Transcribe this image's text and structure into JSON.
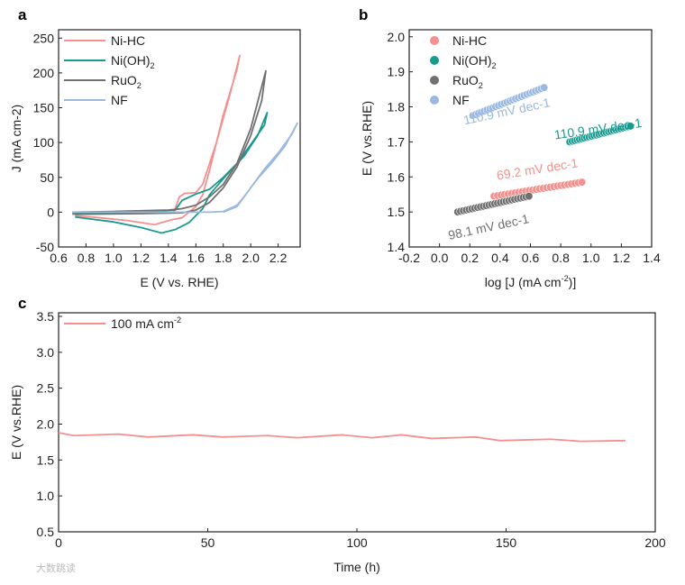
{
  "watermark": "大数跳读",
  "chart_data": [
    {
      "panel": "a",
      "type": "line",
      "xlabel": "E (V vs. RHE)",
      "ylabel": "J (mA cm-2)",
      "xlim": [
        0.6,
        2.36
      ],
      "ylim": [
        -50,
        262
      ],
      "xticks": [
        "0.6",
        "0.8",
        "1.0",
        "1.2",
        "1.4",
        "1.6",
        "1.8",
        "2.0",
        "2.2"
      ],
      "yticks": [
        "-50",
        "0",
        "50",
        "100",
        "150",
        "200",
        "250"
      ],
      "legend_placement": "top-left",
      "series": [
        {
          "name": "Ni-HC",
          "color": "#f4908e",
          "points": [
            [
              0.7,
              -3
            ],
            [
              1.0,
              -1
            ],
            [
              1.44,
              0
            ],
            [
              1.48,
              22
            ],
            [
              1.52,
              27
            ],
            [
              1.6,
              28
            ],
            [
              1.65,
              40
            ],
            [
              1.75,
              100
            ],
            [
              1.85,
              170
            ],
            [
              1.92,
              225
            ],
            [
              1.9,
              205
            ],
            [
              1.8,
              140
            ],
            [
              1.7,
              60
            ],
            [
              1.65,
              25
            ],
            [
              1.6,
              8
            ],
            [
              1.5,
              -8
            ],
            [
              1.42,
              -11
            ],
            [
              1.3,
              -18
            ],
            [
              1.1,
              -12
            ],
            [
              0.9,
              -8
            ],
            [
              0.72,
              -5
            ]
          ]
        },
        {
          "name": "Ni(OH)2",
          "color": "#1a9a8e",
          "points": [
            [
              0.7,
              -2
            ],
            [
              1.0,
              -1
            ],
            [
              1.45,
              3
            ],
            [
              1.5,
              17
            ],
            [
              1.6,
              26
            ],
            [
              1.7,
              33
            ],
            [
              1.8,
              50
            ],
            [
              1.95,
              80
            ],
            [
              2.05,
              110
            ],
            [
              2.12,
              143
            ],
            [
              2.1,
              125
            ],
            [
              2.0,
              97
            ],
            [
              1.9,
              70
            ],
            [
              1.8,
              48
            ],
            [
              1.7,
              25
            ],
            [
              1.65,
              5
            ],
            [
              1.55,
              -15
            ],
            [
              1.45,
              -25
            ],
            [
              1.35,
              -30
            ],
            [
              1.2,
              -22
            ],
            [
              1.0,
              -14
            ],
            [
              0.72,
              -7
            ]
          ]
        },
        {
          "name": "RuO2",
          "color": "#707070",
          "points": [
            [
              0.7,
              0
            ],
            [
              1.0,
              1
            ],
            [
              1.4,
              3
            ],
            [
              1.5,
              5
            ],
            [
              1.6,
              10
            ],
            [
              1.7,
              22
            ],
            [
              1.8,
              40
            ],
            [
              1.9,
              70
            ],
            [
              2.0,
              120
            ],
            [
              2.11,
              203
            ],
            [
              2.08,
              160
            ],
            [
              2.0,
              110
            ],
            [
              1.9,
              65
            ],
            [
              1.8,
              35
            ],
            [
              1.7,
              14
            ],
            [
              1.6,
              3
            ],
            [
              1.5,
              -1
            ],
            [
              1.2,
              -2
            ],
            [
              0.72,
              -3
            ]
          ]
        },
        {
          "name": "NF",
          "color": "#9ab8e0",
          "points": [
            [
              0.7,
              0
            ],
            [
              1.2,
              0
            ],
            [
              1.7,
              0
            ],
            [
              1.8,
              1
            ],
            [
              1.9,
              10
            ],
            [
              1.95,
              22
            ],
            [
              2.05,
              48
            ],
            [
              2.15,
              70
            ],
            [
              2.25,
              95
            ],
            [
              2.34,
              128
            ],
            [
              2.3,
              112
            ],
            [
              2.2,
              85
            ],
            [
              2.1,
              62
            ],
            [
              2.0,
              35
            ],
            [
              1.9,
              8
            ],
            [
              1.8,
              0
            ]
          ]
        }
      ]
    },
    {
      "panel": "b",
      "type": "scatter",
      "xlabel": "log [J (mA cm-2)]",
      "ylabel": "E (V vs.RHE)",
      "xlim": [
        -0.2,
        1.4
      ],
      "ylim": [
        1.4,
        2.02
      ],
      "xticks": [
        "-0.2",
        "0.0",
        "0.2",
        "0.4",
        "0.6",
        "0.8",
        "1.0",
        "1.2",
        "1.4"
      ],
      "yticks": [
        "1.4",
        "1.5",
        "1.6",
        "1.7",
        "1.8",
        "1.9",
        "2.0"
      ],
      "legend_placement": "top-left",
      "series": [
        {
          "name": "Ni-HC",
          "color": "#f4908e",
          "x_range": [
            0.36,
            0.94
          ],
          "y_range": [
            1.545,
            1.585
          ],
          "n": 26,
          "slope_label": "69.2 mV dec-1"
        },
        {
          "name": "Ni(OH)2",
          "color": "#1a9a8e",
          "x_range": [
            0.86,
            1.26
          ],
          "y_range": [
            1.7,
            1.745
          ],
          "n": 26,
          "slope_label": "110.9 mV dec-1"
        },
        {
          "name": "RuO2",
          "color": "#707070",
          "x_range": [
            0.12,
            0.59
          ],
          "y_range": [
            1.5,
            1.545
          ],
          "n": 26,
          "slope_label": "98.1 mV dec-1"
        },
        {
          "name": "NF",
          "color": "#9ab8e0",
          "x_range": [
            0.22,
            0.69
          ],
          "y_range": [
            1.775,
            1.855
          ],
          "n": 26,
          "slope_label": "110.9 mV dec-1"
        }
      ]
    },
    {
      "panel": "c",
      "type": "line",
      "xlabel": "Time (h)",
      "ylabel": "E (V vs.RHE)",
      "xlim": [
        0,
        200
      ],
      "ylim": [
        0.5,
        3.55
      ],
      "xticks": [
        "0",
        "50",
        "100",
        "150",
        "200"
      ],
      "yticks": [
        "0.5",
        "1.0",
        "1.5",
        "2.0",
        "2.5",
        "3.0",
        "3.5"
      ],
      "legend_placement": "top-left",
      "series": [
        {
          "name": "100 mA cm-2",
          "color": "#f4908e",
          "points": [
            [
              0,
              1.88
            ],
            [
              5,
              1.84
            ],
            [
              20,
              1.86
            ],
            [
              30,
              1.82
            ],
            [
              45,
              1.85
            ],
            [
              55,
              1.82
            ],
            [
              70,
              1.84
            ],
            [
              80,
              1.81
            ],
            [
              95,
              1.85
            ],
            [
              105,
              1.81
            ],
            [
              115,
              1.85
            ],
            [
              125,
              1.8
            ],
            [
              140,
              1.82
            ],
            [
              148,
              1.77
            ],
            [
              165,
              1.79
            ],
            [
              175,
              1.76
            ],
            [
              190,
              1.77
            ]
          ]
        }
      ]
    }
  ]
}
